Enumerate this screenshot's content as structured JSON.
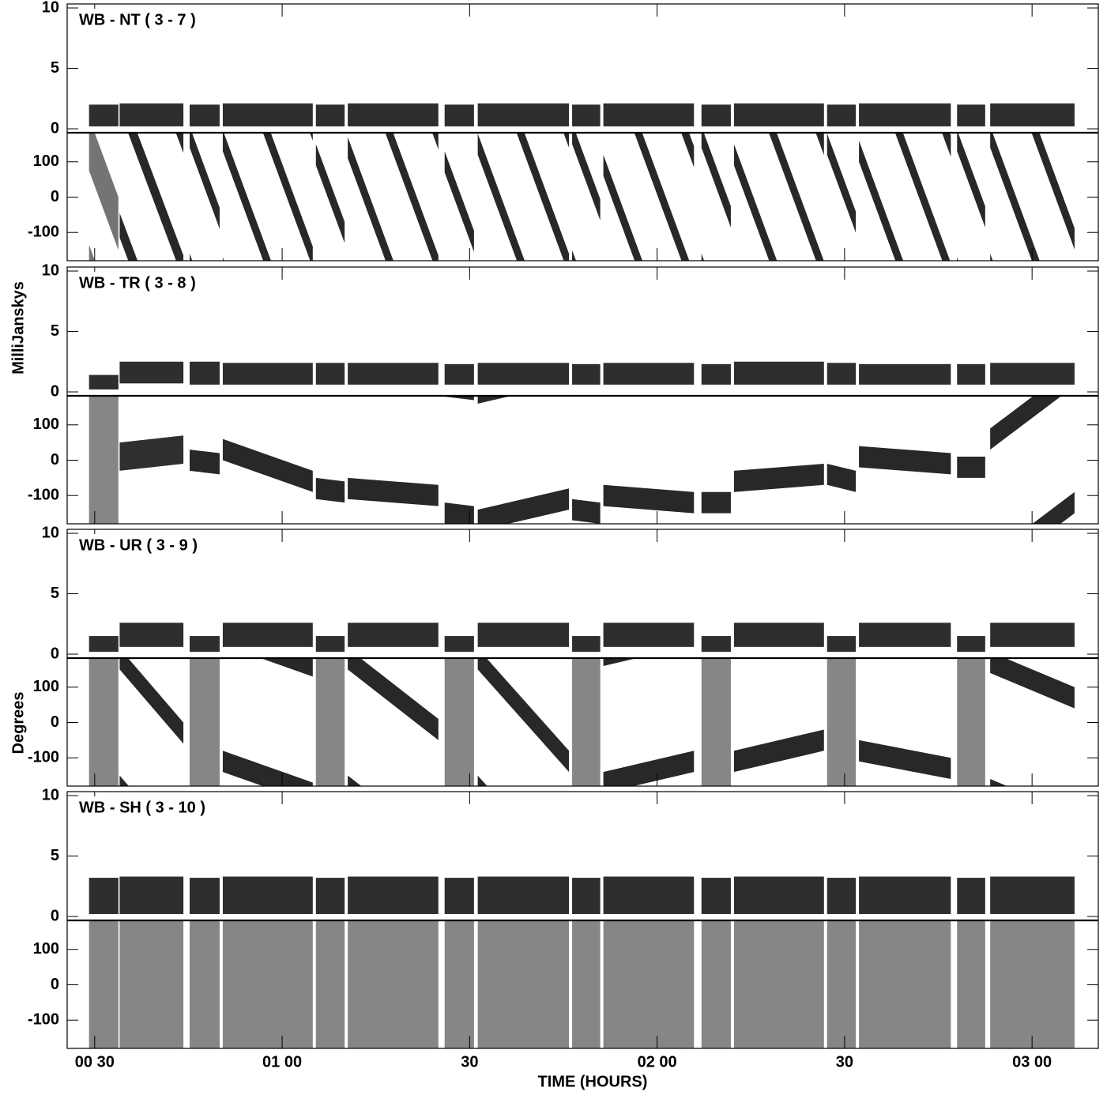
{
  "chart_data": {
    "type": "vplot",
    "xlabel": "TIME (HOURS)",
    "amp_axis_label": "MilliJanskys",
    "phase_axis_label": "Degrees",
    "xlim": [
      25.6,
      190.6
    ],
    "xticks": [
      {
        "value": 30,
        "label": "00 30"
      },
      {
        "value": 60,
        "label": "01 00"
      },
      {
        "value": 90,
        "label": "30"
      },
      {
        "value": 120,
        "label": "02 00"
      },
      {
        "value": 150,
        "label": "30"
      },
      {
        "value": 180,
        "label": "03 00"
      }
    ],
    "amp_ylim": [
      -0.26,
      10.33
    ],
    "amp_yticks": [
      0,
      5,
      10
    ],
    "phase_ylim": [
      -180,
      180
    ],
    "phase_yticks": [
      -100,
      0,
      100
    ],
    "scan_start": [
      29.1,
      34.0,
      45.2,
      50.5,
      65.4,
      70.5,
      86.0,
      91.3,
      106.4,
      111.4,
      127.1,
      132.3,
      147.2,
      152.3,
      168.0,
      173.3
    ],
    "scan_end": [
      33.8,
      44.2,
      50.0,
      64.9,
      70.0,
      85.0,
      90.7,
      105.9,
      110.9,
      125.9,
      131.8,
      146.7,
      151.8,
      167.0,
      172.5,
      186.8
    ],
    "panels": [
      {
        "label": "WB - NT ( 3 - 7 )",
        "amp_low": [
          0.2,
          0.2,
          0.2,
          0.2,
          0.2,
          0.2,
          0.2,
          0.2,
          0.2,
          0.2,
          0.2,
          0.2,
          0.2,
          0.2,
          0.2,
          0.2
        ],
        "amp_high": [
          2.0,
          2.1,
          2.0,
          2.1,
          2.0,
          2.1,
          2.0,
          2.1,
          2.0,
          2.1,
          2.0,
          2.1,
          2.0,
          2.1,
          2.0,
          2.1
        ],
        "phase_start": [
          150,
          -80,
          170,
          160,
          120,
          140,
          100,
          150,
          180,
          90,
          170,
          120,
          150,
          130,
          160,
          170
        ],
        "phase_end": [
          -75,
          -560,
          -60,
          -530,
          -100,
          -555,
          -125,
          -550,
          -36,
          -606,
          -56,
          -571,
          -71,
          -576,
          -56,
          -478
        ],
        "phase_spread": [
          150,
          70,
          60,
          60,
          60,
          60,
          60,
          60,
          60,
          60,
          60,
          60,
          60,
          60,
          60,
          60
        ]
      },
      {
        "label": "WB - TR ( 3 - 8 )",
        "amp_low": [
          0.2,
          0.7,
          0.6,
          0.6,
          0.6,
          0.6,
          0.6,
          0.6,
          0.6,
          0.6,
          0.6,
          0.6,
          0.6,
          0.6,
          0.6,
          0.6
        ],
        "amp_high": [
          1.4,
          2.5,
          2.5,
          2.4,
          2.4,
          2.4,
          2.3,
          2.4,
          2.3,
          2.4,
          2.3,
          2.5,
          2.4,
          2.3,
          2.3,
          2.4
        ],
        "phase_start": [
          0,
          10,
          0,
          30,
          -80,
          -80,
          -150,
          -170,
          -140,
          -100,
          -120,
          -60,
          -40,
          10,
          -20,
          60
        ],
        "phase_end": [
          0,
          30,
          -10,
          -60,
          -90,
          -100,
          -160,
          -110,
          -150,
          -120,
          -120,
          -40,
          -60,
          -10,
          -20,
          240
        ],
        "phase_spread": [
          360,
          80,
          60,
          60,
          60,
          60,
          60,
          60,
          60,
          60,
          60,
          60,
          60,
          60,
          60,
          60
        ]
      },
      {
        "label": "WB - UR ( 3 - 9 )",
        "amp_low": [
          0.2,
          0.6,
          0.2,
          0.6,
          0.2,
          0.6,
          0.2,
          0.6,
          0.2,
          0.6,
          0.2,
          0.6,
          0.2,
          0.6,
          0.2,
          0.6
        ],
        "amp_high": [
          1.5,
          2.6,
          1.5,
          2.6,
          1.5,
          2.6,
          1.5,
          2.6,
          1.5,
          2.6,
          1.5,
          2.6,
          1.5,
          2.6,
          1.5,
          2.6
        ],
        "phase_start": [
          0,
          180,
          0,
          -110,
          0,
          180,
          0,
          180,
          0,
          -170,
          0,
          -110,
          0,
          -80,
          0,
          170
        ],
        "phase_end": [
          0,
          -30,
          0,
          -200,
          0,
          -20,
          0,
          -110,
          0,
          -110,
          0,
          -50,
          0,
          -130,
          0,
          70
        ],
        "phase_spread": [
          360,
          60,
          360,
          60,
          360,
          60,
          360,
          60,
          360,
          60,
          360,
          60,
          360,
          60,
          360,
          60
        ]
      },
      {
        "label": "WB - SH ( 3 - 10 )",
        "amp_low": [
          0.2,
          0.2,
          0.2,
          0.2,
          0.2,
          0.2,
          0.2,
          0.2,
          0.2,
          0.2,
          0.2,
          0.2,
          0.2,
          0.2,
          0.2,
          0.2
        ],
        "amp_high": [
          3.2,
          3.3,
          3.2,
          3.3,
          3.2,
          3.3,
          3.2,
          3.3,
          3.2,
          3.3,
          3.2,
          3.3,
          3.2,
          3.3,
          3.2,
          3.3
        ],
        "phase_start": [
          0,
          0,
          0,
          0,
          0,
          0,
          0,
          0,
          0,
          0,
          0,
          0,
          0,
          0,
          0,
          0
        ],
        "phase_end": [
          0,
          0,
          0,
          0,
          0,
          0,
          0,
          0,
          0,
          0,
          0,
          0,
          0,
          0,
          0,
          0
        ],
        "phase_spread": [
          360,
          360,
          360,
          360,
          360,
          360,
          360,
          360,
          360,
          360,
          360,
          360,
          360,
          360,
          360,
          360
        ]
      }
    ]
  }
}
